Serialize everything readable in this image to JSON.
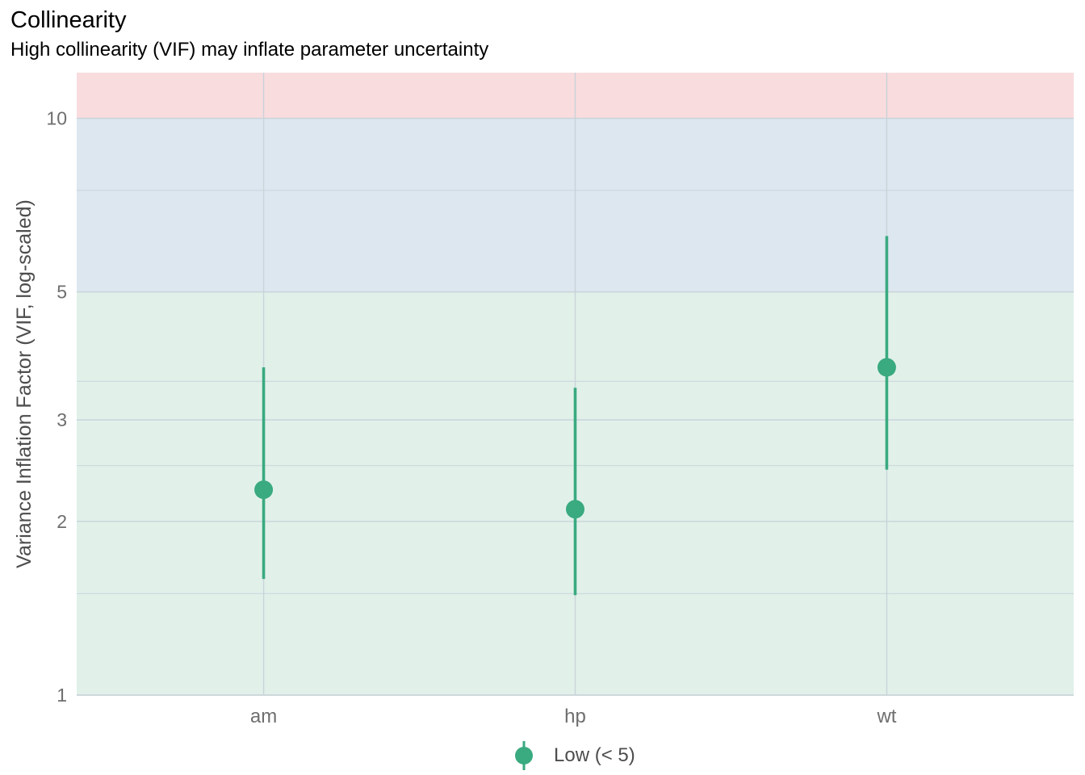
{
  "title": "Collinearity",
  "subtitle": "High collinearity (VIF) may inflate parameter uncertainty",
  "chart_data": {
    "type": "scatter",
    "title": "Collinearity",
    "subtitle": "High collinearity (VIF) may inflate parameter uncertainty",
    "xlabel": "",
    "ylabel": "Variance Inflation Factor (VIF, log-scaled)",
    "y_scale": "log10",
    "ylim": [
      1,
      12
    ],
    "y_ticks": [
      1,
      2,
      3,
      5,
      10
    ],
    "y_tick_labels": [
      "1",
      "2",
      "3",
      "5",
      "10"
    ],
    "y_minor_gridlines": [
      1.5,
      2.5,
      3.5,
      7.5
    ],
    "categories": [
      "am",
      "hp",
      "wt"
    ],
    "series": [
      {
        "name": "Low (< 5)",
        "color": "#3aaa80",
        "values": [
          2.27,
          2.1,
          3.7
        ],
        "ci_low": [
          1.59,
          1.49,
          2.46
        ],
        "ci_high": [
          3.7,
          3.41,
          6.25
        ]
      }
    ],
    "background_bands": [
      {
        "from": 1,
        "to": 5,
        "color": "#e1f1ea"
      },
      {
        "from": 5,
        "to": 10,
        "color": "#dce7f0"
      },
      {
        "from": 10,
        "to": 12,
        "color": "#f9dcde"
      }
    ],
    "grid": true,
    "legend_position": "bottom"
  },
  "legend": {
    "label": "Low (< 5)",
    "color": "#3aaa80"
  }
}
